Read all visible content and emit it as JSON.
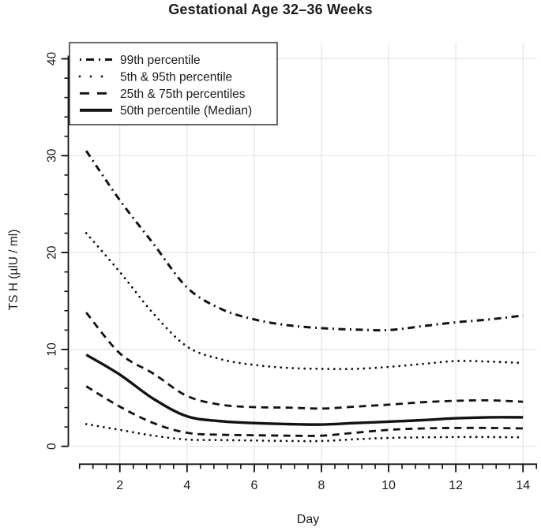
{
  "page": {
    "background": "#ffffff"
  },
  "chart_data": {
    "type": "line",
    "title": "Gestational Age 32–36 Weeks",
    "xlabel": "Day",
    "ylabel": "TS H (µlU / ml)",
    "xlim": [
      0.8,
      14.45
    ],
    "ylim": [
      0,
      40
    ],
    "x_major_ticks": [
      2,
      4,
      6,
      8,
      10,
      12,
      14
    ],
    "x_minor_step": 0.4,
    "y_major_ticks": [
      0,
      10,
      20,
      30,
      40
    ],
    "y_minor_step": 2,
    "grid": "major gridlines on, light gray",
    "grid_color": "#e4e4e4",
    "line_color": "#121212",
    "legend_position": "top-left",
    "x": [
      1,
      2,
      3,
      4,
      5,
      6,
      7,
      8,
      9,
      10,
      11,
      12,
      13,
      14
    ],
    "series": [
      {
        "name": "99th percentile",
        "style": "dashdot",
        "values": [
          30.5,
          25.4,
          20.9,
          16.4,
          14.2,
          13.1,
          12.5,
          12.2,
          12.05,
          12.0,
          12.4,
          12.8,
          13.1,
          13.5
        ]
      },
      {
        "name": "95th percentile",
        "style": "dotted",
        "values": [
          22.0,
          18.0,
          13.7,
          10.3,
          9.0,
          8.4,
          8.1,
          8.0,
          8.0,
          8.2,
          8.5,
          8.8,
          8.75,
          8.6
        ]
      },
      {
        "name": "75th percentile",
        "style": "dashed",
        "values": [
          13.8,
          9.6,
          7.5,
          5.2,
          4.3,
          4.05,
          4.0,
          3.9,
          4.1,
          4.3,
          4.55,
          4.7,
          4.75,
          4.6
        ]
      },
      {
        "name": "50th percentile (Median)",
        "style": "solid",
        "values": [
          9.45,
          7.4,
          4.9,
          3.1,
          2.6,
          2.4,
          2.3,
          2.25,
          2.4,
          2.55,
          2.7,
          2.9,
          3.0,
          3.0
        ]
      },
      {
        "name": "25th percentile",
        "style": "dashed",
        "values": [
          6.2,
          4.1,
          2.4,
          1.4,
          1.2,
          1.15,
          1.1,
          1.1,
          1.4,
          1.7,
          1.85,
          1.9,
          1.9,
          1.85
        ]
      },
      {
        "name": "5th percentile",
        "style": "dotted",
        "values": [
          2.3,
          1.7,
          1.1,
          0.7,
          0.65,
          0.6,
          0.55,
          0.55,
          0.73,
          0.87,
          0.93,
          0.96,
          0.96,
          0.93
        ]
      }
    ],
    "legend": [
      {
        "label": "99th percentile",
        "style": "dashdot"
      },
      {
        "label": "5th & 95th percentile",
        "style": "dotted"
      },
      {
        "label": "25th & 75th percentiles",
        "style": "dashed"
      },
      {
        "label": "50th percentile (Median)",
        "style": "solid"
      }
    ]
  }
}
